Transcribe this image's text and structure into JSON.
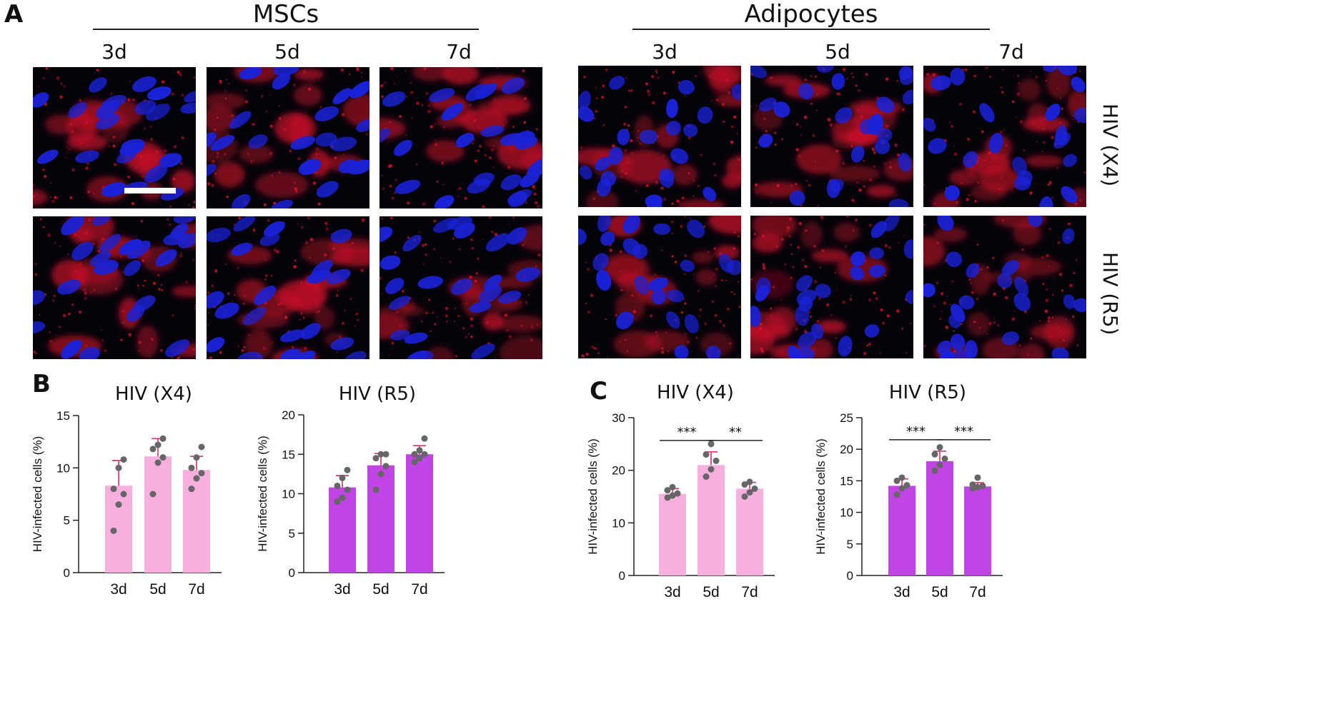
{
  "figure": {
    "panel_a": "A",
    "panel_b": "B",
    "panel_c": "C",
    "groups": [
      {
        "title": "MSCs",
        "columns": [
          "3d",
          "5d",
          "7d"
        ]
      },
      {
        "title": "Adipocytes",
        "columns": [
          "3d",
          "5d",
          "7d"
        ]
      }
    ],
    "rows": [
      "HIV (X4)",
      "HIV (R5)"
    ],
    "colors": {
      "nucleus": "#1a22d8",
      "virus": "#d0122a",
      "bar_light": "#f7b0de",
      "bar_dark": "#c045e4",
      "errorbar": "#e0407a",
      "dot": "#666666"
    }
  },
  "chart_data": [
    {
      "type": "bar",
      "panel": "B",
      "title": "HIV (X4)",
      "xlabel": "",
      "ylabel": "HIV-infected cells (%)",
      "categories": [
        "3d",
        "5d",
        "7d"
      ],
      "values": [
        8.3,
        11.1,
        9.8
      ],
      "error": [
        2.4,
        1.7,
        1.3
      ],
      "points": [
        [
          4.0,
          6.5,
          7.5,
          8.0,
          10.0,
          10.8
        ],
        [
          7.5,
          10.5,
          11.0,
          11.8,
          12.2,
          12.8
        ],
        [
          8.0,
          9.0,
          9.5,
          10.0,
          11.0,
          12.0
        ]
      ],
      "ylim": [
        0,
        15
      ],
      "yticks": [
        0,
        5,
        10,
        15
      ],
      "color": "#f7b0de",
      "significance": []
    },
    {
      "type": "bar",
      "panel": "B",
      "title": "HIV (R5)",
      "xlabel": "",
      "ylabel": "HIV-infected cells (%)",
      "categories": [
        "3d",
        "5d",
        "7d"
      ],
      "values": [
        10.8,
        13.6,
        15.0
      ],
      "error": [
        1.5,
        1.5,
        1.1
      ],
      "points": [
        [
          9.0,
          9.5,
          10.5,
          11.0,
          12.0,
          13.0
        ],
        [
          10.5,
          12.5,
          13.5,
          14.5,
          15.0,
          15.0
        ],
        [
          14.0,
          14.5,
          15.0,
          15.0,
          15.5,
          17.0
        ]
      ],
      "ylim": [
        0,
        20
      ],
      "yticks": [
        0,
        5,
        10,
        15,
        20
      ],
      "color": "#c045e4",
      "significance": []
    },
    {
      "type": "bar",
      "panel": "C",
      "title": "HIV (X4)",
      "xlabel": "",
      "ylabel": "HIV-infected cells (%)",
      "categories": [
        "3d",
        "5d",
        "7d"
      ],
      "values": [
        15.5,
        21.0,
        16.5
      ],
      "error": [
        1.0,
        2.5,
        1.2
      ],
      "points": [
        [
          14.8,
          15.2,
          15.6,
          16.2,
          16.8
        ],
        [
          18.8,
          20.2,
          21.8,
          23.0,
          25.0
        ],
        [
          15.0,
          15.8,
          16.5,
          17.3,
          17.8
        ]
      ],
      "ylim": [
        0,
        30
      ],
      "yticks": [
        0,
        10,
        20,
        30
      ],
      "color": "#f7b0de",
      "significance": [
        {
          "from": 0,
          "to": 1,
          "label": "***"
        },
        {
          "from": 1,
          "to": 2,
          "label": "**"
        }
      ]
    },
    {
      "type": "bar",
      "panel": "C",
      "title": "HIV (R5)",
      "xlabel": "",
      "ylabel": "HIV-infected cells (%)",
      "categories": [
        "3d",
        "5d",
        "7d"
      ],
      "values": [
        14.2,
        18.1,
        14.1
      ],
      "error": [
        1.1,
        1.6,
        0.6
      ],
      "points": [
        [
          12.8,
          13.8,
          14.3,
          15.0,
          15.5
        ],
        [
          16.6,
          17.5,
          18.5,
          19.2,
          20.3
        ],
        [
          13.8,
          14.0,
          14.2,
          14.4,
          15.5
        ]
      ],
      "ylim": [
        0,
        25
      ],
      "yticks": [
        0,
        5,
        10,
        15,
        20,
        25
      ],
      "color": "#c045e4",
      "significance": [
        {
          "from": 0,
          "to": 1,
          "label": "***"
        },
        {
          "from": 1,
          "to": 2,
          "label": "***"
        }
      ]
    }
  ]
}
